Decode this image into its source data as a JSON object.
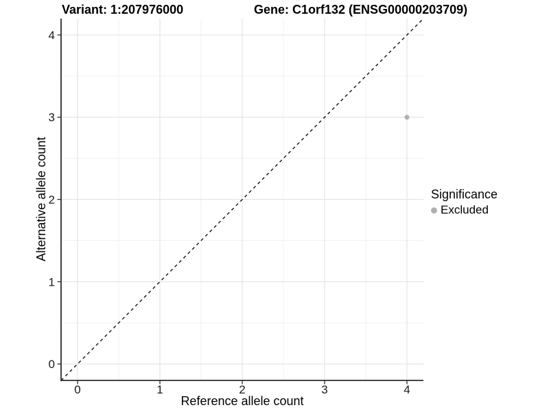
{
  "header": {
    "variant_title": "Variant: 1:207976000",
    "gene_title": "Gene: C1orf132 (ENSG00000203709)"
  },
  "chart_data": {
    "type": "scatter",
    "xlabel": "Reference allele count",
    "ylabel": "Alternative allele count",
    "xlim": [
      -0.2,
      4.2
    ],
    "ylim": [
      -0.2,
      4.2
    ],
    "xticks": [
      0,
      1,
      2,
      3,
      4
    ],
    "yticks": [
      0,
      1,
      2,
      3,
      4
    ],
    "xticks_minor": [
      0.5,
      1.5,
      2.5,
      3.5
    ],
    "yticks_minor": [
      0.5,
      1.5,
      2.5,
      3.5
    ],
    "grid": "major+minor",
    "identity_line": {
      "style": "dashed",
      "slope": 1,
      "intercept": 0
    },
    "points": [
      {
        "x": 4,
        "y": 3,
        "significance": "Excluded"
      }
    ],
    "legend": {
      "title": "Significance",
      "position": "right",
      "entries": [
        {
          "label": "Excluded",
          "color": "#b0b0b0"
        }
      ]
    },
    "colors": {
      "point_excluded": "#b0b0b0",
      "grid_major": "#e4e4e4",
      "grid_minor": "#f1f1f1",
      "axis_line": "#2b2b2b",
      "tick_mark": "#2b2b2b",
      "tick_label": "#1a1a1a",
      "identity_line": "#111111",
      "background": "#ffffff"
    }
  }
}
